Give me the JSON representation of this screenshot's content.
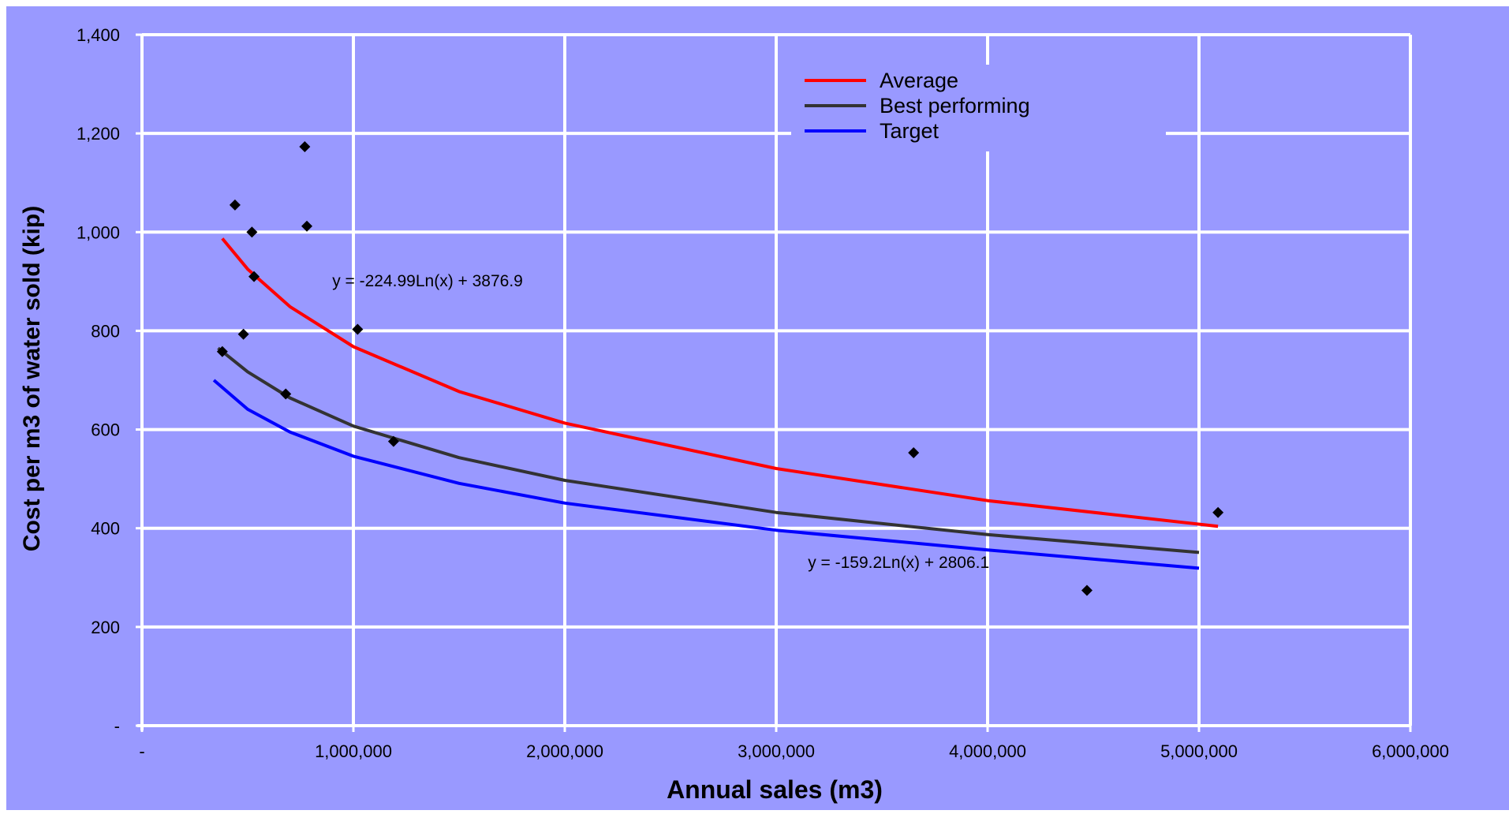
{
  "chart_data": {
    "type": "scatter",
    "xlabel": "Annual sales (m3)",
    "ylabel": "Cost per m3 of water sold (kip)",
    "xlim": [
      0,
      6000000
    ],
    "ylim": [
      0,
      1400
    ],
    "x_ticks": [
      0,
      1000000,
      2000000,
      3000000,
      4000000,
      5000000,
      6000000
    ],
    "x_tick_labels": [
      "-",
      "1,000,000",
      "2,000,000",
      "3,000,000",
      "4,000,000",
      "5,000,000",
      "6,000,000"
    ],
    "y_ticks": [
      0,
      200,
      400,
      600,
      800,
      1000,
      1200,
      1400
    ],
    "y_tick_labels": [
      "-",
      "200",
      "400",
      "600",
      "800",
      "1,000",
      "1,200",
      "1,400"
    ],
    "grid": true,
    "legend_position": "top-right",
    "colors": {
      "background": "#9999ff",
      "grid": "#ffffff",
      "points": "#000000",
      "average": "#ff0000",
      "best": "#333333",
      "target": "#0000ff"
    },
    "points": [
      {
        "x": 440000,
        "y": 1055
      },
      {
        "x": 520000,
        "y": 1000
      },
      {
        "x": 770000,
        "y": 1173
      },
      {
        "x": 780000,
        "y": 1012
      },
      {
        "x": 530000,
        "y": 910
      },
      {
        "x": 1020000,
        "y": 803
      },
      {
        "x": 480000,
        "y": 793
      },
      {
        "x": 380000,
        "y": 758
      },
      {
        "x": 680000,
        "y": 672
      },
      {
        "x": 1190000,
        "y": 576
      },
      {
        "x": 3650000,
        "y": 553
      },
      {
        "x": 5090000,
        "y": 432
      },
      {
        "x": 4470000,
        "y": 274
      }
    ],
    "series": [
      {
        "name": "Average",
        "x": [
          380000,
          500000,
          700000,
          1000000,
          1500000,
          2000000,
          3000000,
          4000000,
          5090000
        ],
        "values": [
          987,
          925,
          849,
          768,
          677,
          613,
          521,
          456,
          404
        ]
      },
      {
        "name": "Best performing",
        "x": [
          360000,
          500000,
          700000,
          1000000,
          1500000,
          2000000,
          3000000,
          4000000,
          5000000
        ],
        "values": [
          765,
          717,
          664,
          607,
          543,
          497,
          432,
          387,
          351
        ]
      },
      {
        "name": "Target",
        "x": [
          340000,
          500000,
          700000,
          1000000,
          1500000,
          2000000,
          3000000,
          4000000,
          5000000
        ],
        "values": [
          700,
          641,
          595,
          546,
          491,
          451,
          396,
          356,
          319
        ]
      }
    ],
    "annotations": [
      {
        "text": "y = -224.99Ln(x) + 3876.9",
        "x": 900000,
        "y": 890
      },
      {
        "text": "y = -159.2Ln(x) + 2806.1",
        "x": 3150000,
        "y": 320
      }
    ]
  }
}
